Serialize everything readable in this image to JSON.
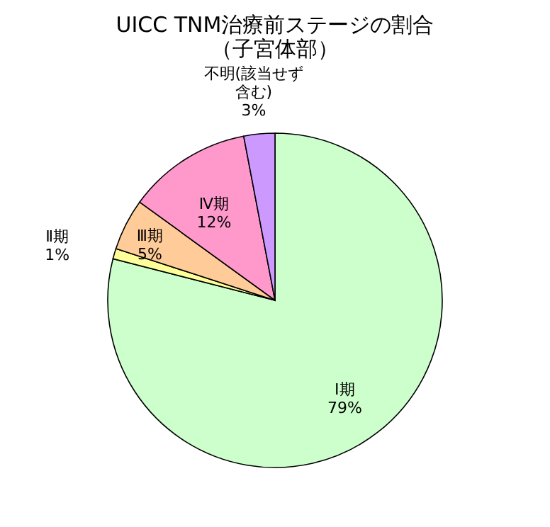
{
  "chart_data": {
    "type": "pie",
    "title": [
      "UICC TNM治療前ステージの割合",
      "（子宮体部）"
    ],
    "categories": [
      "Ⅰ期",
      "Ⅱ期",
      "Ⅲ期",
      "Ⅳ期",
      "不明(該当せず含む)"
    ],
    "values": [
      79,
      1,
      5,
      12,
      3
    ],
    "value_labels": [
      "79%",
      "1%",
      "5%",
      "12%",
      "3%"
    ],
    "colors": [
      "#ccffcc",
      "#ffff99",
      "#ffcc99",
      "#ff99cc",
      "#cc99ff"
    ],
    "legend": false
  }
}
